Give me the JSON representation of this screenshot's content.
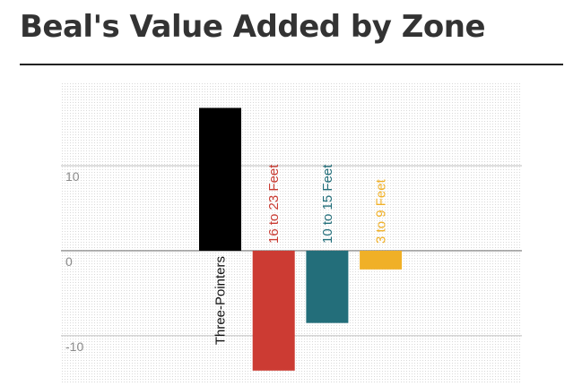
{
  "title": "Beal's Value Added by Zone",
  "chart_data": {
    "type": "bar",
    "title": "Beal's Value Added by Zone",
    "categories": [
      "Three-Pointers",
      "16 to 23 Feet",
      "10 to 15 Feet",
      "3 to 9 Feet"
    ],
    "values": [
      16.8,
      -14.1,
      -8.5,
      -2.2
    ],
    "colors": [
      "#000000",
      "#cc3b33",
      "#236e7a",
      "#f0b027"
    ],
    "label_colors": [
      "#111111",
      "#c93a31",
      "#236e7a",
      "#f0b027"
    ],
    "ylim": [
      -15.7,
      19.8
    ],
    "yticks": [
      {
        "value": 10,
        "label": "10"
      },
      {
        "value": 0,
        "label": "0"
      },
      {
        "value": -10,
        "label": "-10"
      }
    ],
    "xlabel": "",
    "ylabel": "",
    "grid": true,
    "grid_style": "dotted"
  }
}
